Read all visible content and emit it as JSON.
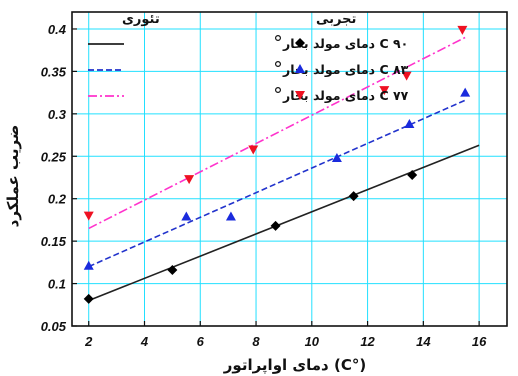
{
  "chart_data": {
    "type": "scatter",
    "xlabel": "(°C) دمای اواپراتور",
    "ylabel": "ضریب عملکرد",
    "xlim": [
      1.4,
      17
    ],
    "ylim": [
      0.05,
      0.42
    ],
    "xticks": [
      2,
      4,
      6,
      8,
      10,
      12,
      14,
      16
    ],
    "yticks": [
      0.05,
      0.1,
      0.15,
      0.2,
      0.25,
      0.3,
      0.35,
      0.4
    ],
    "xtick_labels": [
      "2",
      "4",
      "6",
      "8",
      "10",
      "12",
      "14",
      "16"
    ],
    "ytick_labels": [
      "0.05",
      "0.1",
      "0.15",
      "0.2",
      "0.25",
      "0.3",
      "0.35",
      "0.4"
    ],
    "grid": true,
    "legend": {
      "theory_label": "تئوری",
      "experiment_label": "تجربی",
      "placement": "top-left"
    },
    "series": [
      {
        "name": "C  ۹۰ دمای مولد بخار",
        "line_color": "#222222",
        "line_style": "solid",
        "marker": "diamond",
        "marker_color": "#000000",
        "theory": {
          "x": [
            2,
            16
          ],
          "y": [
            0.08,
            0.263
          ]
        },
        "experiment": {
          "x": [
            2,
            5,
            8.7,
            11.5,
            13.6
          ],
          "y": [
            0.082,
            0.116,
            0.168,
            0.203,
            0.228
          ]
        }
      },
      {
        "name": "C  ۸۳ دمای مولد بخار",
        "line_color": "#2233cc",
        "line_style": "dashed",
        "marker": "triangle",
        "marker_color": "#1a2bdd",
        "theory": {
          "x": [
            2,
            15.5
          ],
          "y": [
            0.12,
            0.316
          ]
        },
        "experiment": {
          "x": [
            2,
            5.5,
            7.1,
            10.9,
            13.5,
            15.5
          ],
          "y": [
            0.121,
            0.179,
            0.179,
            0.248,
            0.288,
            0.325
          ]
        }
      },
      {
        "name": "C  ۷۷ دمای مولد بخار",
        "line_color": "#ff33cc",
        "line_style": "dashdot",
        "marker": "triangle-down",
        "marker_color": "#ee1122",
        "theory": {
          "x": [
            2,
            15.5
          ],
          "y": [
            0.165,
            0.39
          ]
        },
        "experiment": {
          "x": [
            2,
            5.6,
            7.9,
            12.6,
            13.4,
            15.4
          ],
          "y": [
            0.18,
            0.223,
            0.258,
            0.328,
            0.345,
            0.399
          ]
        }
      }
    ]
  }
}
